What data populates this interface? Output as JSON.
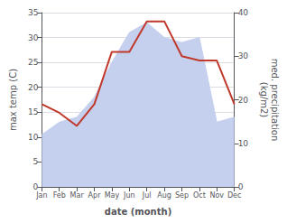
{
  "chart_data": {
    "type": "line",
    "categories": [
      "Jan",
      "Feb",
      "Mar",
      "Apr",
      "May",
      "Jun",
      "Jul",
      "Aug",
      "Sep",
      "Oct",
      "Nov",
      "Dec"
    ],
    "xlabel": "date (month)",
    "ylabel": "max temp (C)",
    "y2label": "med. precipitation\n(kg/m2)",
    "ylim": [
      0,
      35
    ],
    "yticks": [
      0,
      5,
      10,
      15,
      20,
      25,
      30,
      35
    ],
    "y2lim": [
      0,
      40
    ],
    "y2ticks": [
      0,
      10,
      20,
      30,
      40
    ],
    "grid": true,
    "series": [
      {
        "type": "area",
        "color": "#c5d0ee",
        "values": [
          10.5,
          13.0,
          14.0,
          18.0,
          25.0,
          31.0,
          33.0,
          30.0,
          29.0,
          30.0,
          13.0,
          14.0
        ]
      },
      {
        "type": "line",
        "color": "#c0392b",
        "axis": "y2",
        "values": [
          19.0,
          17.0,
          14.0,
          19.0,
          31.0,
          31.0,
          38.0,
          38.0,
          30.0,
          29.0,
          29.0,
          19.0
        ]
      }
    ]
  }
}
